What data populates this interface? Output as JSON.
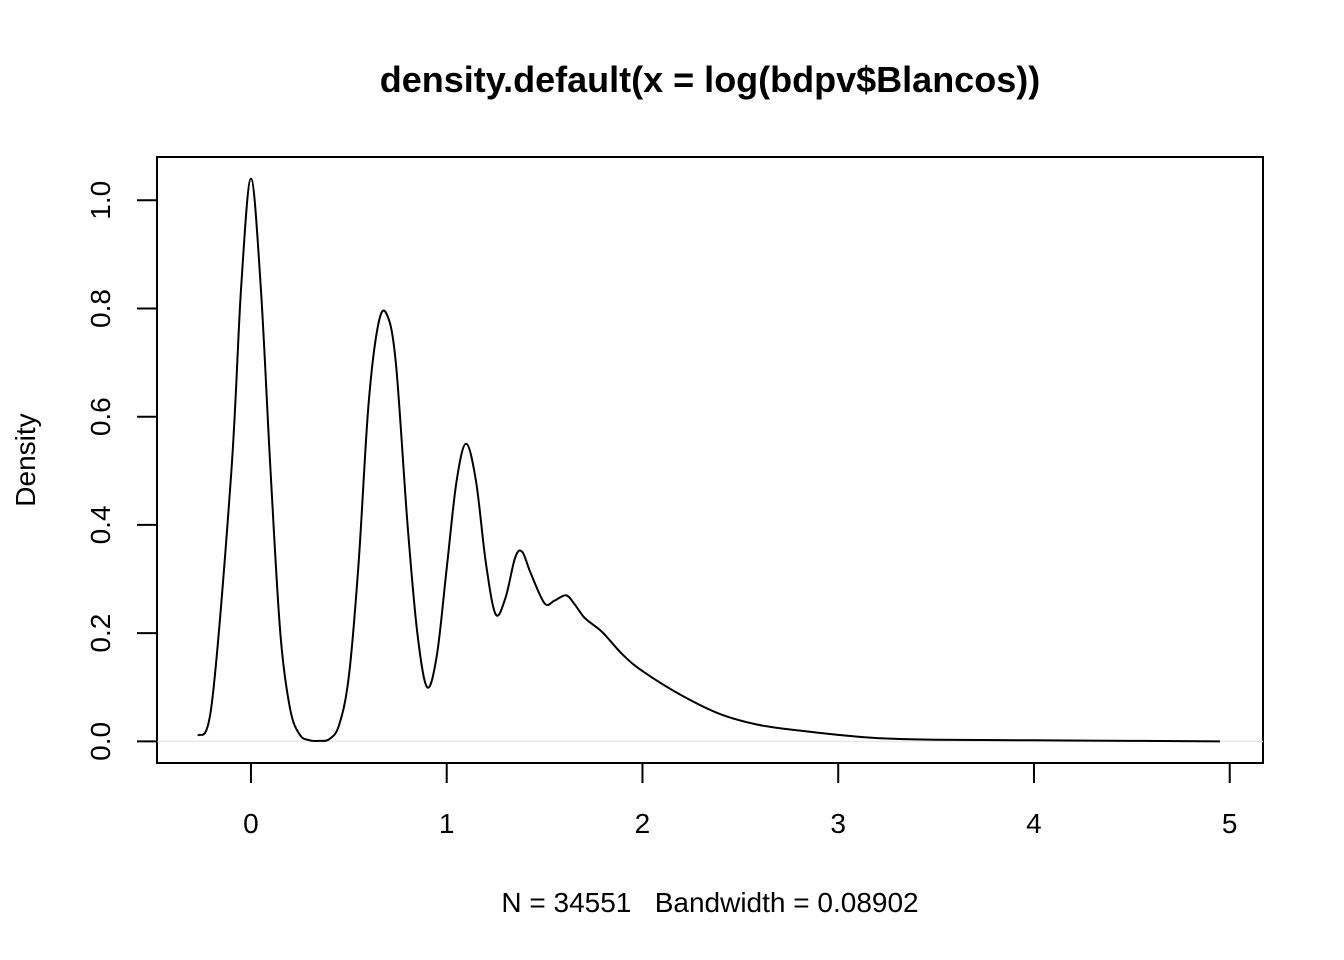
{
  "chart_data": {
    "type": "line",
    "title": "density.default(x = log(bdpv$Blancos))",
    "xlabel": "N = 34551   Bandwidth = 0.08902",
    "ylabel": "Density",
    "xlim": [
      -0.48,
      5.17
    ],
    "ylim": [
      -0.04,
      1.08
    ],
    "x_ticks": [
      0,
      1,
      2,
      3,
      4,
      5
    ],
    "x_tick_labels": [
      "0",
      "1",
      "2",
      "3",
      "4",
      "5"
    ],
    "y_ticks": [
      0.0,
      0.2,
      0.4,
      0.6,
      0.8,
      1.0
    ],
    "y_tick_labels": [
      "0.0",
      "0.2",
      "0.4",
      "0.6",
      "0.8",
      "1.0"
    ],
    "grid": false,
    "baseline": 0,
    "series": [
      {
        "x": [
          -0.27,
          -0.2,
          -0.1,
          -0.05,
          0,
          0.05,
          0.1,
          0.15,
          0.2,
          0.25,
          0.3,
          0.35,
          0.4,
          0.45,
          0.5,
          0.55,
          0.6,
          0.65,
          0.693,
          0.74,
          0.8,
          0.85,
          0.9,
          0.95,
          1.0,
          1.05,
          1.099,
          1.15,
          1.2,
          1.25,
          1.3,
          1.35,
          1.386,
          1.43,
          1.5,
          1.55,
          1.609,
          1.65,
          1.7,
          1.75,
          1.8,
          1.9,
          2.0,
          2.2,
          2.4,
          2.6,
          2.8,
          3.0,
          3.2,
          3.5,
          4.0,
          4.5,
          4.95
        ],
        "values": [
          0.01,
          0.07,
          0.5,
          0.84,
          1.04,
          0.84,
          0.5,
          0.2,
          0.06,
          0.012,
          0.002,
          0.001,
          0.004,
          0.03,
          0.12,
          0.33,
          0.62,
          0.77,
          0.79,
          0.7,
          0.4,
          0.2,
          0.1,
          0.16,
          0.32,
          0.48,
          0.55,
          0.48,
          0.33,
          0.235,
          0.265,
          0.34,
          0.35,
          0.31,
          0.255,
          0.26,
          0.27,
          0.255,
          0.23,
          0.215,
          0.2,
          0.16,
          0.13,
          0.085,
          0.05,
          0.03,
          0.02,
          0.012,
          0.006,
          0.003,
          0.002,
          0.001,
          0.0
        ]
      }
    ]
  }
}
